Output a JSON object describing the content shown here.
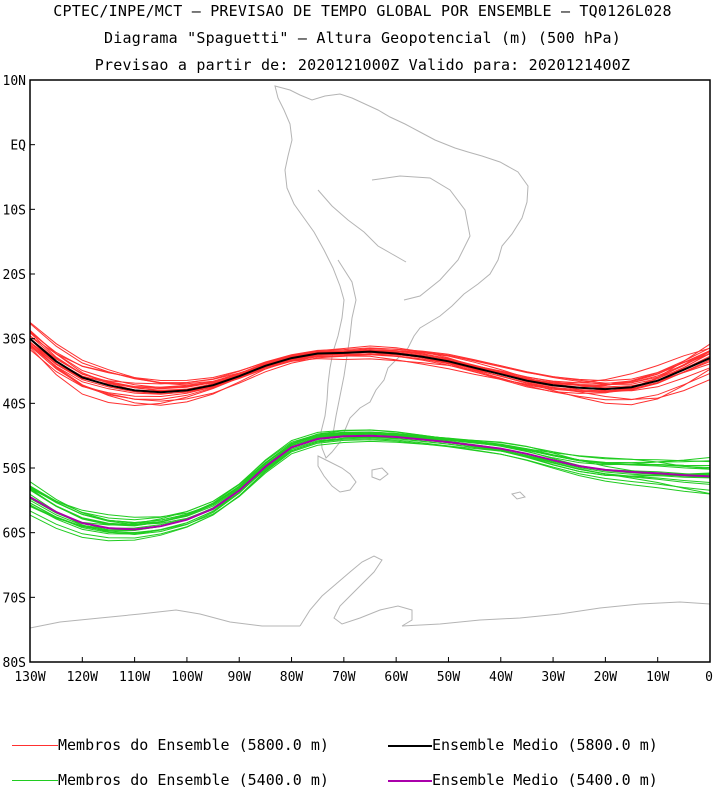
{
  "header": {
    "line1": "CPTEC/INPE/MCT – PREVISAO DE TEMPO GLOBAL POR ENSEMBLE – TQ0126L028",
    "line2": "Diagrama \"Spaguetti\" – Altura Geopotencial (m) (500 hPa)",
    "line3": "Previsao a partir de: 2020121000Z  Valido para: 2020121400Z"
  },
  "map": {
    "lon_range": [
      -130,
      0
    ],
    "lat_range": [
      -80,
      10
    ],
    "y_ticks": [
      "10N",
      "EQ",
      "10S",
      "20S",
      "30S",
      "40S",
      "50S",
      "60S",
      "70S",
      "80S"
    ],
    "x_ticks": [
      "130W",
      "120W",
      "110W",
      "100W",
      "90W",
      "80W",
      "70W",
      "60W",
      "50W",
      "40W",
      "30W",
      "20W",
      "10W",
      "0"
    ]
  },
  "chart_data": {
    "type": "line",
    "x_unit": "longitude (deg)",
    "y_unit": "latitude (deg)",
    "series": [
      {
        "name": "Ensemble Medio (5800.0 m)",
        "color": "#000000",
        "x": [
          -130,
          -125,
          -120,
          -115,
          -110,
          -105,
          -100,
          -95,
          -90,
          -85,
          -80,
          -75,
          -70,
          -65,
          -60,
          -55,
          -50,
          -45,
          -40,
          -35,
          -30,
          -25,
          -20,
          -15,
          -10,
          -5,
          0
        ],
        "y": [
          -30,
          -33.5,
          -36,
          -37.2,
          -38,
          -38.3,
          -38,
          -37.2,
          -35.8,
          -34.2,
          -33,
          -32.3,
          -32.2,
          -32,
          -32.3,
          -32.8,
          -33.5,
          -34.5,
          -35.5,
          -36.5,
          -37.2,
          -37.6,
          -37.8,
          -37.5,
          -36.5,
          -34.8,
          -33
        ]
      },
      {
        "name": "Ensemble Medio (5400.0 m)",
        "color": "#aa00aa",
        "x": [
          -130,
          -125,
          -120,
          -115,
          -110,
          -105,
          -100,
          -95,
          -90,
          -85,
          -80,
          -75,
          -70,
          -65,
          -60,
          -55,
          -50,
          -45,
          -40,
          -35,
          -30,
          -25,
          -20,
          -15,
          -10,
          -5,
          0
        ],
        "y": [
          -54.5,
          -56.8,
          -58.5,
          -59.3,
          -59.5,
          -59,
          -58,
          -56.3,
          -53.5,
          -49.8,
          -46.8,
          -45.5,
          -45.1,
          -45,
          -45.2,
          -45.6,
          -46,
          -46.5,
          -47,
          -47.8,
          -48.8,
          -49.7,
          -50.3,
          -50.6,
          -50.8,
          -51.1,
          -51.3
        ]
      }
    ],
    "ensemble_members": [
      {
        "name": "Membros do Ensemble (5800.0 m)",
        "color": "#ff3030",
        "members": 20
      },
      {
        "name": "Membros do Ensemble (5400.0 m)",
        "color": "#20cc20",
        "members": 20
      }
    ]
  },
  "legend": [
    {
      "label": "Membros do Ensemble (5800.0 m)",
      "color": "#ff3030"
    },
    {
      "label": "Ensemble Medio (5800.0 m)",
      "color": "#000000"
    },
    {
      "label": "Membros do Ensemble (5400.0 m)",
      "color": "#20cc20"
    },
    {
      "label": "Ensemble Medio (5400.0 m)",
      "color": "#aa00aa"
    }
  ]
}
